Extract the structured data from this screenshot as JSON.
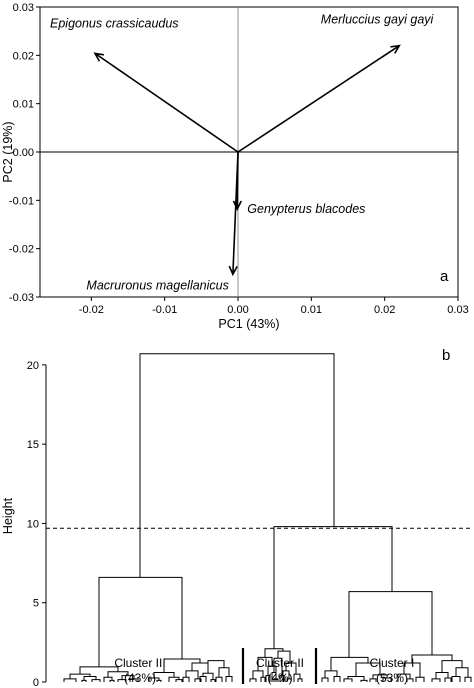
{
  "chart_data": [
    {
      "type": "biplot",
      "panel_label": "a",
      "xlabel": "PC1 (43%)",
      "ylabel": "PC2 (19%)",
      "xlim": [
        -0.027,
        0.03
      ],
      "ylim": [
        -0.03,
        0.03
      ],
      "x_ticks": [
        -0.02,
        -0.01,
        0.0,
        0.01,
        0.02,
        0.03
      ],
      "x_tick_labels": [
        "-0.02",
        "-0.01",
        "0.00",
        "0.01",
        "0.02",
        "0.03"
      ],
      "y_ticks": [
        -0.03,
        -0.02,
        -0.01,
        0.0,
        0.01,
        0.02,
        0.03
      ],
      "y_tick_labels": [
        "-0.03",
        "-0.02",
        "-0.01",
        "0.00",
        "0.01",
        "0.02",
        "0.03"
      ],
      "vectors": [
        {
          "label": "Epigonus crassicaudus",
          "x": -0.0195,
          "y": 0.0204
        },
        {
          "label": "Merluccius gayi gayi",
          "x": 0.022,
          "y": 0.022
        },
        {
          "label": "Genypterus blacodes",
          "x": -0.0001,
          "y": -0.0118
        },
        {
          "label": "Macruronus magellanicus",
          "x": -0.0007,
          "y": -0.0253
        }
      ]
    },
    {
      "type": "dendrogram",
      "panel_label": "b",
      "ylabel": "Height",
      "ylim": [
        0,
        21
      ],
      "y_ticks": [
        0,
        5,
        10,
        15,
        20
      ],
      "y_tick_labels": [
        "0",
        "5",
        "10",
        "15",
        "20"
      ],
      "cut_height": 8.9,
      "merges": [
        {
          "name": "root",
          "height": 20.7
        },
        {
          "name": "cluster-iii-top",
          "height": 6.6
        },
        {
          "name": "clusters-i-ii-top",
          "height": 9.8
        },
        {
          "name": "cluster-i-top",
          "height": 5.7
        },
        {
          "name": "cluster-ii-top",
          "height": 2.1
        }
      ],
      "clusters": [
        {
          "name": "Cluster III",
          "percent": "(43%)"
        },
        {
          "name": "Cluster II",
          "percent": "(4%)"
        },
        {
          "name": "Cluster I",
          "percent": "(53%)"
        }
      ]
    }
  ]
}
